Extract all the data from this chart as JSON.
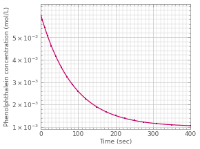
{
  "xlabel": "Time (sec)",
  "ylabel": "Phenolphthalein concentration (mol/L)",
  "xlim": [
    0,
    400
  ],
  "ylim": [
    0.0009,
    0.0065
  ],
  "x_ticks": [
    0,
    100,
    200,
    300,
    400
  ],
  "C0": 0.006,
  "Cinf": 0.001,
  "k": 0.0115,
  "data_points_x": [
    0,
    4,
    10,
    18,
    28,
    40,
    55,
    70,
    85,
    100,
    120,
    150,
    175,
    200,
    225,
    250,
    275,
    310,
    350,
    400
  ],
  "line_color": "#cc0066",
  "dot_color": "#aa0077",
  "bg_color": "#ffffff",
  "plot_bg_color": "#ffffff",
  "grid_color": "#cccccc",
  "tick_color": "#888888",
  "label_color": "#555555",
  "font_size": 6.5,
  "axis_label_size": 6.5,
  "yticks": [
    0.001,
    0.002,
    0.003,
    0.004,
    0.005
  ]
}
